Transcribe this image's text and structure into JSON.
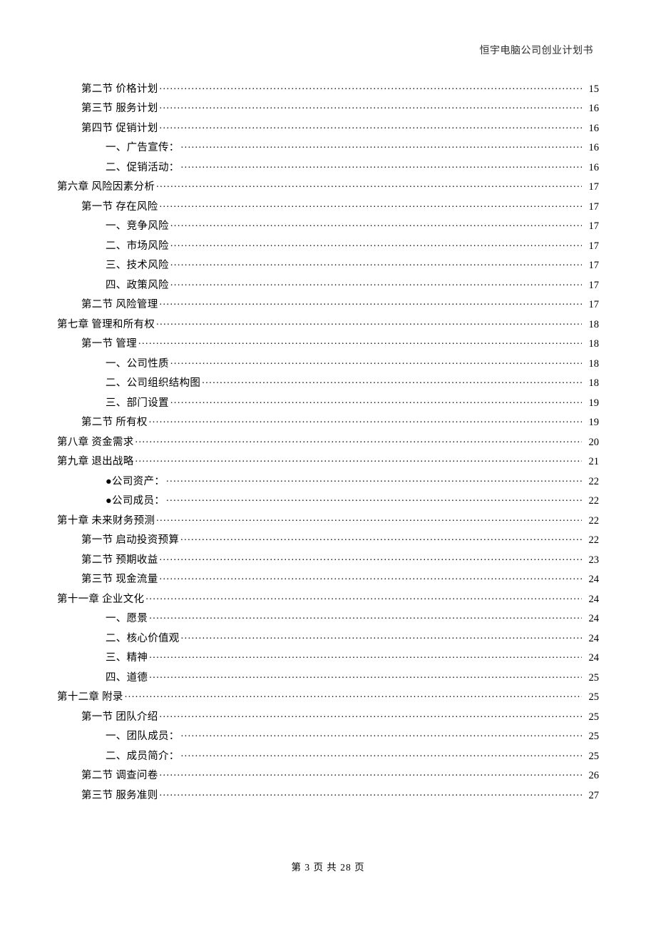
{
  "header": {
    "title": "恒宇电脑公司创业计划书"
  },
  "footer": {
    "prefix": "第",
    "current": "3",
    "middle": "页 共",
    "total": "28",
    "suffix": "页"
  },
  "toc": {
    "entries": [
      {
        "level": 1,
        "label": "第二节  价格计划",
        "page": "15"
      },
      {
        "level": 1,
        "label": "第三节  服务计划",
        "page": "16"
      },
      {
        "level": 1,
        "label": "第四节  促销计划",
        "page": "16"
      },
      {
        "level": 2,
        "label": "一、广告宣传：",
        "page": "16"
      },
      {
        "level": 2,
        "label": "二、促销活动：",
        "page": "16"
      },
      {
        "level": 0,
        "label": "第六章  风险因素分析",
        "page": "17"
      },
      {
        "level": 1,
        "label": "第一节  存在风险",
        "page": "17"
      },
      {
        "level": 2,
        "label": "一、竞争风险",
        "page": "17"
      },
      {
        "level": 2,
        "label": "二、市场风险",
        "page": "17"
      },
      {
        "level": 2,
        "label": "三、技术风险",
        "page": "17"
      },
      {
        "level": 2,
        "label": "四、政策风险",
        "page": "17"
      },
      {
        "level": 1,
        "label": "第二节  风险管理",
        "page": "17"
      },
      {
        "level": 0,
        "label": "第七章  管理和所有权",
        "page": "18"
      },
      {
        "level": 1,
        "label": "第一节  管理",
        "page": "18"
      },
      {
        "level": 2,
        "label": "一、公司性质",
        "page": "18"
      },
      {
        "level": 2,
        "label": "二、公司组织结构图",
        "page": "18"
      },
      {
        "level": 2,
        "label": "三、部门设置",
        "page": "19"
      },
      {
        "level": 1,
        "label": "第二节  所有权",
        "page": "19"
      },
      {
        "level": 0,
        "label": "第八章  资金需求",
        "page": "20"
      },
      {
        "level": 0,
        "label": "第九章  退出战略",
        "page": "21"
      },
      {
        "level": 2,
        "label": "●公司资产：",
        "page": "22"
      },
      {
        "level": 2,
        "label": "●公司成员：",
        "page": "22"
      },
      {
        "level": 0,
        "label": "第十章  未来财务预测",
        "page": "22"
      },
      {
        "level": 1,
        "label": "第一节  启动投资预算",
        "page": "22"
      },
      {
        "level": 1,
        "label": "第二节  预期收益",
        "page": "23"
      },
      {
        "level": 1,
        "label": "第三节  现金流量",
        "page": "24"
      },
      {
        "level": 0,
        "label": "第十一章  企业文化",
        "page": "24"
      },
      {
        "level": 2,
        "label": "一、愿景",
        "page": "24"
      },
      {
        "level": 2,
        "label": "二、核心价值观",
        "page": "24"
      },
      {
        "level": 2,
        "label": "三、精神",
        "page": "24"
      },
      {
        "level": 2,
        "label": "四、道德",
        "page": "25"
      },
      {
        "level": 0,
        "label": "第十二章  附录",
        "page": "25"
      },
      {
        "level": 1,
        "label": "第一节  团队介绍",
        "page": "25"
      },
      {
        "level": 2,
        "label": "一、团队成员：",
        "page": "25"
      },
      {
        "level": 2,
        "label": "二、成员简介：",
        "page": "25"
      },
      {
        "level": 1,
        "label": "第二节  调查问卷",
        "page": "26"
      },
      {
        "level": 1,
        "label": "第三节  服务准则",
        "page": "27"
      }
    ]
  }
}
